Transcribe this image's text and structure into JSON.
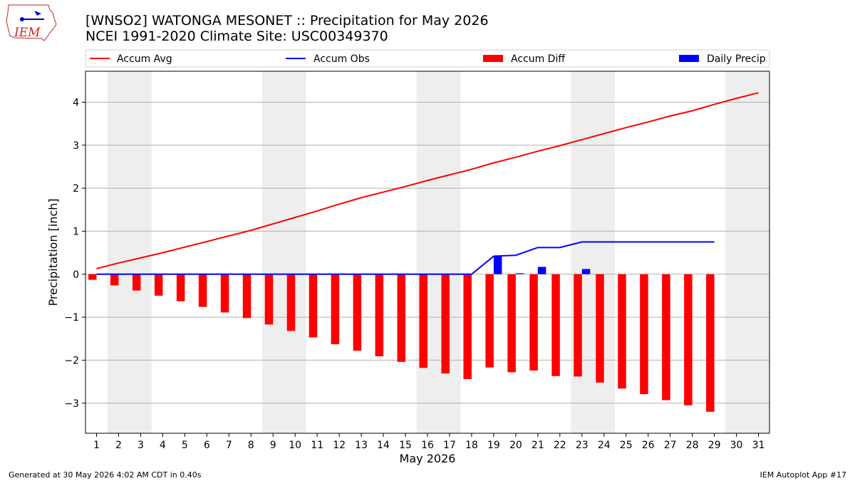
{
  "header": {
    "title_line1": "[WNSO2] WATONGA MESONET :: Precipitation for May 2026",
    "title_line2": "NCEI 1991-2020 Climate Site: USC00349370"
  },
  "logo": {
    "text": "IEM"
  },
  "footer": {
    "left": "Generated at 30 May 2026 4:02 AM CDT in 0.40s",
    "right": "IEM Autoplot App #17"
  },
  "colors": {
    "accum_avg": "#ff0000",
    "accum_obs": "#0000ff",
    "accum_diff": "#ff0000",
    "daily_precip": "#0000ff",
    "weekend_band": "#eeeeee",
    "grid": "#b0b0b0"
  },
  "chart_data": {
    "type": "bar",
    "xlabel": "May 2026",
    "ylabel": "Precipitation [inch]",
    "xlim": [
      0.5,
      31.5
    ],
    "ylim": [
      -3.7,
      4.72
    ],
    "yticks": [
      -3,
      -2,
      -1,
      0,
      1,
      2,
      3,
      4
    ],
    "ytick_labels": [
      "−3",
      "−2",
      "−1",
      "0",
      "1",
      "2",
      "3",
      "4"
    ],
    "grid": "horizontal",
    "legend_position": "top",
    "days": [
      1,
      2,
      3,
      4,
      5,
      6,
      7,
      8,
      9,
      10,
      11,
      12,
      13,
      14,
      15,
      16,
      17,
      18,
      19,
      20,
      21,
      22,
      23,
      24,
      25,
      26,
      27,
      28,
      29,
      30,
      31
    ],
    "weekend_bands": [
      [
        1.5,
        3.5
      ],
      [
        8.5,
        10.5
      ],
      [
        15.5,
        17.5
      ],
      [
        22.5,
        24.5
      ],
      [
        29.5,
        31.5
      ]
    ],
    "legend": [
      "Accum Avg",
      "Accum Obs",
      "Accum Diff",
      "Daily Precip"
    ],
    "series": [
      {
        "name": "Accum Avg",
        "type": "line",
        "values": [
          0.13,
          0.26,
          0.38,
          0.5,
          0.63,
          0.76,
          0.89,
          1.02,
          1.17,
          1.32,
          1.47,
          1.63,
          1.78,
          1.91,
          2.04,
          2.18,
          2.31,
          2.44,
          2.59,
          2.72,
          2.86,
          2.99,
          3.13,
          3.27,
          3.41,
          3.54,
          3.68,
          3.8,
          3.95,
          4.09,
          4.22
        ]
      },
      {
        "name": "Accum Obs",
        "type": "line",
        "values": [
          0,
          0,
          0,
          0,
          0,
          0,
          0,
          0,
          0,
          0,
          0,
          0,
          0,
          0,
          0,
          0,
          0,
          0,
          0.42,
          0.44,
          0.62,
          0.62,
          0.75,
          0.75,
          0.75,
          0.75,
          0.75,
          0.75,
          0.75
        ]
      },
      {
        "name": "Accum Diff",
        "type": "bar",
        "values": [
          -0.13,
          -0.26,
          -0.38,
          -0.5,
          -0.63,
          -0.76,
          -0.89,
          -1.02,
          -1.17,
          -1.32,
          -1.47,
          -1.63,
          -1.78,
          -1.91,
          -2.04,
          -2.18,
          -2.31,
          -2.44,
          -2.17,
          -2.28,
          -2.24,
          -2.37,
          -2.38,
          -2.52,
          -2.66,
          -2.79,
          -2.93,
          -3.05,
          -3.2
        ]
      },
      {
        "name": "Daily Precip",
        "type": "bar",
        "values": [
          0,
          0,
          0,
          0,
          0,
          0,
          0,
          0,
          0,
          0,
          0,
          0,
          0,
          0,
          0,
          0,
          0,
          0,
          0.42,
          0.02,
          0.17,
          0,
          0.12,
          0,
          0,
          0,
          0,
          0,
          0
        ]
      }
    ]
  }
}
